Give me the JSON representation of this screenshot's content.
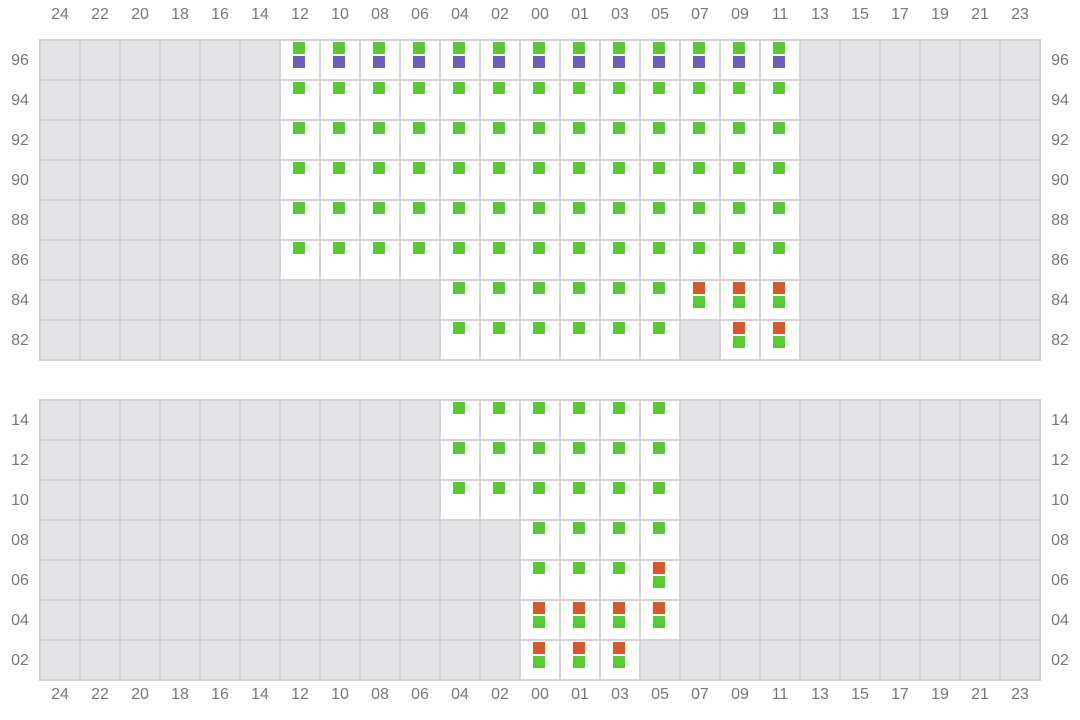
{
  "columns": [
    "24",
    "22",
    "20",
    "18",
    "16",
    "14",
    "12",
    "10",
    "08",
    "06",
    "04",
    "02",
    "00",
    "01",
    "03",
    "05",
    "07",
    "09",
    "11",
    "13",
    "15",
    "17",
    "19",
    "21",
    "23"
  ],
  "marker_colors": {
    "green": "#58c934",
    "red": "#d4582b",
    "purple": "#6a60b8"
  },
  "grids": [
    {
      "rows": [
        {
          "label": "96",
          "cells": [
            null,
            null,
            null,
            null,
            null,
            null,
            [
              "green",
              "purple"
            ],
            [
              "green",
              "purple"
            ],
            [
              "green",
              "purple"
            ],
            [
              "green",
              "purple"
            ],
            [
              "green",
              "purple"
            ],
            [
              "green",
              "purple"
            ],
            [
              "green",
              "purple"
            ],
            [
              "green",
              "purple"
            ],
            [
              "green",
              "purple"
            ],
            [
              "green",
              "purple"
            ],
            [
              "green",
              "purple"
            ],
            [
              "green",
              "purple"
            ],
            [
              "green",
              "purple"
            ],
            null,
            null,
            null,
            null,
            null,
            null
          ]
        },
        {
          "label": "94",
          "cells": [
            null,
            null,
            null,
            null,
            null,
            null,
            [
              "green"
            ],
            [
              "green"
            ],
            [
              "green"
            ],
            [
              "green"
            ],
            [
              "green"
            ],
            [
              "green"
            ],
            [
              "green"
            ],
            [
              "green"
            ],
            [
              "green"
            ],
            [
              "green"
            ],
            [
              "green"
            ],
            [
              "green"
            ],
            [
              "green"
            ],
            null,
            null,
            null,
            null,
            null,
            null
          ]
        },
        {
          "label": "92",
          "cells": [
            null,
            null,
            null,
            null,
            null,
            null,
            [
              "green"
            ],
            [
              "green"
            ],
            [
              "green"
            ],
            [
              "green"
            ],
            [
              "green"
            ],
            [
              "green"
            ],
            [
              "green"
            ],
            [
              "green"
            ],
            [
              "green"
            ],
            [
              "green"
            ],
            [
              "green"
            ],
            [
              "green"
            ],
            [
              "green"
            ],
            null,
            null,
            null,
            null,
            null,
            null
          ]
        },
        {
          "label": "90",
          "cells": [
            null,
            null,
            null,
            null,
            null,
            null,
            [
              "green"
            ],
            [
              "green"
            ],
            [
              "green"
            ],
            [
              "green"
            ],
            [
              "green"
            ],
            [
              "green"
            ],
            [
              "green"
            ],
            [
              "green"
            ],
            [
              "green"
            ],
            [
              "green"
            ],
            [
              "green"
            ],
            [
              "green"
            ],
            [
              "green"
            ],
            null,
            null,
            null,
            null,
            null,
            null
          ]
        },
        {
          "label": "88",
          "cells": [
            null,
            null,
            null,
            null,
            null,
            null,
            [
              "green"
            ],
            [
              "green"
            ],
            [
              "green"
            ],
            [
              "green"
            ],
            [
              "green"
            ],
            [
              "green"
            ],
            [
              "green"
            ],
            [
              "green"
            ],
            [
              "green"
            ],
            [
              "green"
            ],
            [
              "green"
            ],
            [
              "green"
            ],
            [
              "green"
            ],
            null,
            null,
            null,
            null,
            null,
            null
          ]
        },
        {
          "label": "86",
          "cells": [
            null,
            null,
            null,
            null,
            null,
            null,
            [
              "green"
            ],
            [
              "green"
            ],
            [
              "green"
            ],
            [
              "green"
            ],
            [
              "green"
            ],
            [
              "green"
            ],
            [
              "green"
            ],
            [
              "green"
            ],
            [
              "green"
            ],
            [
              "green"
            ],
            [
              "green"
            ],
            [
              "green"
            ],
            [
              "green"
            ],
            null,
            null,
            null,
            null,
            null,
            null
          ]
        },
        {
          "label": "84",
          "cells": [
            null,
            null,
            null,
            null,
            null,
            null,
            null,
            null,
            null,
            null,
            [
              "green"
            ],
            [
              "green"
            ],
            [
              "green"
            ],
            [
              "green"
            ],
            [
              "green"
            ],
            [
              "green"
            ],
            [
              "red",
              "green"
            ],
            [
              "red",
              "green"
            ],
            [
              "red",
              "green"
            ],
            null,
            null,
            null,
            null,
            null,
            null
          ]
        },
        {
          "label": "82",
          "cells": [
            null,
            null,
            null,
            null,
            null,
            null,
            null,
            null,
            null,
            null,
            [
              "green"
            ],
            [
              "green"
            ],
            [
              "green"
            ],
            [
              "green"
            ],
            [
              "green"
            ],
            [
              "green"
            ],
            null,
            [
              "red",
              "green"
            ],
            [
              "red",
              "green"
            ],
            null,
            null,
            null,
            null,
            null,
            null
          ]
        }
      ]
    },
    {
      "rows": [
        {
          "label": "14",
          "cells": [
            null,
            null,
            null,
            null,
            null,
            null,
            null,
            null,
            null,
            null,
            [
              "green"
            ],
            [
              "green"
            ],
            [
              "green"
            ],
            [
              "green"
            ],
            [
              "green"
            ],
            [
              "green"
            ],
            null,
            null,
            null,
            null,
            null,
            null,
            null,
            null,
            null
          ]
        },
        {
          "label": "12",
          "cells": [
            null,
            null,
            null,
            null,
            null,
            null,
            null,
            null,
            null,
            null,
            [
              "green"
            ],
            [
              "green"
            ],
            [
              "green"
            ],
            [
              "green"
            ],
            [
              "green"
            ],
            [
              "green"
            ],
            null,
            null,
            null,
            null,
            null,
            null,
            null,
            null,
            null
          ]
        },
        {
          "label": "10",
          "cells": [
            null,
            null,
            null,
            null,
            null,
            null,
            null,
            null,
            null,
            null,
            [
              "green"
            ],
            [
              "green"
            ],
            [
              "green"
            ],
            [
              "green"
            ],
            [
              "green"
            ],
            [
              "green"
            ],
            null,
            null,
            null,
            null,
            null,
            null,
            null,
            null,
            null
          ]
        },
        {
          "label": "08",
          "cells": [
            null,
            null,
            null,
            null,
            null,
            null,
            null,
            null,
            null,
            null,
            null,
            null,
            [
              "green"
            ],
            [
              "green"
            ],
            [
              "green"
            ],
            [
              "green"
            ],
            null,
            null,
            null,
            null,
            null,
            null,
            null,
            null,
            null
          ]
        },
        {
          "label": "06",
          "cells": [
            null,
            null,
            null,
            null,
            null,
            null,
            null,
            null,
            null,
            null,
            null,
            null,
            [
              "green"
            ],
            [
              "green"
            ],
            [
              "green"
            ],
            [
              "red",
              "green"
            ],
            null,
            null,
            null,
            null,
            null,
            null,
            null,
            null,
            null
          ]
        },
        {
          "label": "04",
          "cells": [
            null,
            null,
            null,
            null,
            null,
            null,
            null,
            null,
            null,
            null,
            null,
            null,
            [
              "red",
              "green"
            ],
            [
              "red",
              "green"
            ],
            [
              "red",
              "green"
            ],
            [
              "red",
              "green"
            ],
            null,
            null,
            null,
            null,
            null,
            null,
            null,
            null,
            null
          ]
        },
        {
          "label": "02",
          "cells": [
            null,
            null,
            null,
            null,
            null,
            null,
            null,
            null,
            null,
            null,
            null,
            null,
            [
              "red",
              "green"
            ],
            [
              "red",
              "green"
            ],
            [
              "red",
              "green"
            ],
            null,
            null,
            null,
            null,
            null,
            null,
            null,
            null,
            null,
            null
          ]
        }
      ]
    }
  ]
}
